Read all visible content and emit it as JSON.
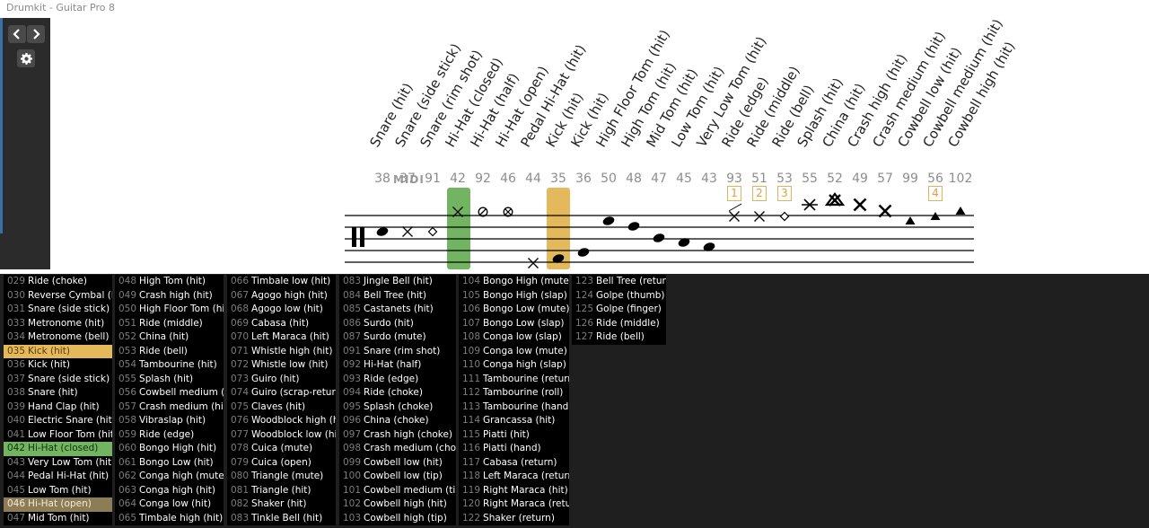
{
  "window": {
    "title": "Drumkit - Guitar Pro 8"
  },
  "toolbar": {
    "prev_icon": "chevron-left-icon",
    "next_icon": "chevron-right-icon",
    "settings_icon": "gear-icon"
  },
  "midi_logo": "MIDI",
  "colors": {
    "highlight_orange": "#e4b95c",
    "highlight_green": "#73b462",
    "highlight_tan": "#8c7d57",
    "badge": "#d9a23e"
  },
  "articulations": [
    {
      "label": "Snare (hit)",
      "midi": "38"
    },
    {
      "label": "Snare (side stick)",
      "midi": "37"
    },
    {
      "label": "Snare (rim shot)",
      "midi": "91"
    },
    {
      "label": "Hi-Hat (closed)",
      "midi": "42"
    },
    {
      "label": "Hi-Hat (half)",
      "midi": "92"
    },
    {
      "label": "Hi-Hat (open)",
      "midi": "46"
    },
    {
      "label": "Pedal Hi-Hat (hit)",
      "midi": "44"
    },
    {
      "label": "Kick (hit)",
      "midi": "35"
    },
    {
      "label": "Kick (hit)",
      "midi": "36"
    },
    {
      "label": "High Floor Tom (hit)",
      "midi": "50"
    },
    {
      "label": "High Tom (hit)",
      "midi": "48"
    },
    {
      "label": "Mid Tom (hit)",
      "midi": "47"
    },
    {
      "label": "Low Tom (hit)",
      "midi": "45"
    },
    {
      "label": "Very Low Tom (hit)",
      "midi": "43"
    },
    {
      "label": "Ride (edge)",
      "midi": "93",
      "badge": "1"
    },
    {
      "label": "Ride (middle)",
      "midi": "51",
      "badge": "2"
    },
    {
      "label": "Ride (bell)",
      "midi": "53",
      "badge": "3"
    },
    {
      "label": "Splash (hit)",
      "midi": "55"
    },
    {
      "label": "China (hit)",
      "midi": "52"
    },
    {
      "label": "Crash high (hit)",
      "midi": "49"
    },
    {
      "label": "Crash medium (hit)",
      "midi": "57"
    },
    {
      "label": "Cowbell low (hit)",
      "midi": "99"
    },
    {
      "label": "Cowbell medium (hit)",
      "midi": "56",
      "badge": "4"
    },
    {
      "label": "Cowbell high (hit)",
      "midi": "102"
    }
  ],
  "instrument_list": [
    [
      {
        "num": "029",
        "name": "Ride (choke)"
      },
      {
        "num": "030",
        "name": "Reverse Cymbal (hit)"
      },
      {
        "num": "031",
        "name": "Snare (side stick)"
      },
      {
        "num": "033",
        "name": "Metronome (hit)"
      },
      {
        "num": "034",
        "name": "Metronome (bell)"
      },
      {
        "num": "035",
        "name": "Kick (hit)",
        "hl": "orange"
      },
      {
        "num": "036",
        "name": "Kick (hit)"
      },
      {
        "num": "037",
        "name": "Snare (side stick)"
      },
      {
        "num": "038",
        "name": "Snare (hit)"
      },
      {
        "num": "039",
        "name": "Hand Clap (hit)"
      },
      {
        "num": "040",
        "name": "Electric Snare (hit)"
      },
      {
        "num": "041",
        "name": "Low Floor Tom (hit)"
      },
      {
        "num": "042",
        "name": "Hi-Hat (closed)",
        "hl": "green"
      },
      {
        "num": "043",
        "name": "Very Low Tom (hit)"
      },
      {
        "num": "044",
        "name": "Pedal Hi-Hat (hit)"
      },
      {
        "num": "045",
        "name": "Low Tom (hit)"
      },
      {
        "num": "046",
        "name": "Hi-Hat (open)",
        "hl": "tan"
      },
      {
        "num": "047",
        "name": "Mid Tom (hit)"
      }
    ],
    [
      {
        "num": "048",
        "name": "High Tom (hit)"
      },
      {
        "num": "049",
        "name": "Crash high (hit)"
      },
      {
        "num": "050",
        "name": "High Floor Tom (hit)"
      },
      {
        "num": "051",
        "name": "Ride (middle)"
      },
      {
        "num": "052",
        "name": "China (hit)"
      },
      {
        "num": "053",
        "name": "Ride (bell)"
      },
      {
        "num": "054",
        "name": "Tambourine (hit)"
      },
      {
        "num": "055",
        "name": "Splash (hit)"
      },
      {
        "num": "056",
        "name": "Cowbell medium (hit)"
      },
      {
        "num": "057",
        "name": "Crash medium (hit)"
      },
      {
        "num": "058",
        "name": "Vibraslap (hit)"
      },
      {
        "num": "059",
        "name": "Ride (edge)"
      },
      {
        "num": "060",
        "name": "Bongo High (hit)"
      },
      {
        "num": "061",
        "name": "Bongo Low (hit)"
      },
      {
        "num": "062",
        "name": "Conga high (mute)"
      },
      {
        "num": "063",
        "name": "Conga high (hit)"
      },
      {
        "num": "064",
        "name": "Conga low (hit)"
      },
      {
        "num": "065",
        "name": "Timbale high (hit)"
      }
    ],
    [
      {
        "num": "066",
        "name": "Timbale low (hit)"
      },
      {
        "num": "067",
        "name": "Agogo high (hit)"
      },
      {
        "num": "068",
        "name": "Agogo low (hit)"
      },
      {
        "num": "069",
        "name": "Cabasa (hit)"
      },
      {
        "num": "070",
        "name": "Left Maraca (hit)"
      },
      {
        "num": "071",
        "name": "Whistle high (hit)"
      },
      {
        "num": "072",
        "name": "Whistle low (hit)"
      },
      {
        "num": "073",
        "name": "Guiro (hit)"
      },
      {
        "num": "074",
        "name": "Guiro (scrap-return)"
      },
      {
        "num": "075",
        "name": "Claves (hit)"
      },
      {
        "num": "076",
        "name": "Woodblock high (hit)"
      },
      {
        "num": "077",
        "name": "Woodblock low (hit)"
      },
      {
        "num": "078",
        "name": "Cuica (mute)"
      },
      {
        "num": "079",
        "name": "Cuica (open)"
      },
      {
        "num": "080",
        "name": "Triangle (mute)"
      },
      {
        "num": "081",
        "name": "Triangle (hit)"
      },
      {
        "num": "082",
        "name": "Shaker (hit)"
      },
      {
        "num": "083",
        "name": "Tinkle Bell (hit)"
      }
    ],
    [
      {
        "num": "083",
        "name": "Jingle Bell (hit)"
      },
      {
        "num": "084",
        "name": "Bell Tree (hit)"
      },
      {
        "num": "085",
        "name": "Castanets (hit)"
      },
      {
        "num": "086",
        "name": "Surdo (hit)"
      },
      {
        "num": "087",
        "name": "Surdo (mute)"
      },
      {
        "num": "091",
        "name": "Snare (rim shot)"
      },
      {
        "num": "092",
        "name": "Hi-Hat (half)"
      },
      {
        "num": "093",
        "name": "Ride (edge)"
      },
      {
        "num": "094",
        "name": "Ride (choke)"
      },
      {
        "num": "095",
        "name": "Splash (choke)"
      },
      {
        "num": "096",
        "name": "China (choke)"
      },
      {
        "num": "097",
        "name": "Crash high (choke)"
      },
      {
        "num": "098",
        "name": "Crash medium (choke)"
      },
      {
        "num": "099",
        "name": "Cowbell low (hit)"
      },
      {
        "num": "100",
        "name": "Cowbell low (tip)"
      },
      {
        "num": "101",
        "name": "Cowbell medium (tip)"
      },
      {
        "num": "102",
        "name": "Cowbell high (hit)"
      },
      {
        "num": "103",
        "name": "Cowbell high (tip)"
      }
    ],
    [
      {
        "num": "104",
        "name": "Bongo High (mute)"
      },
      {
        "num": "105",
        "name": "Bongo High (slap)"
      },
      {
        "num": "106",
        "name": "Bongo Low (mute)"
      },
      {
        "num": "107",
        "name": "Bongo Low (slap)"
      },
      {
        "num": "108",
        "name": "Conga low (slap)"
      },
      {
        "num": "109",
        "name": "Conga low (mute)"
      },
      {
        "num": "110",
        "name": "Conga high (slap)"
      },
      {
        "num": "111",
        "name": "Tambourine (return)"
      },
      {
        "num": "112",
        "name": "Tambourine (roll)"
      },
      {
        "num": "113",
        "name": "Tambourine (hand)"
      },
      {
        "num": "114",
        "name": "Grancassa (hit)"
      },
      {
        "num": "115",
        "name": "Piatti (hit)"
      },
      {
        "num": "116",
        "name": "Piatti (hand)"
      },
      {
        "num": "117",
        "name": "Cabasa (return)"
      },
      {
        "num": "118",
        "name": "Left Maraca (return)"
      },
      {
        "num": "119",
        "name": "Right Maraca (hit)"
      },
      {
        "num": "120",
        "name": "Right Maraca (return)"
      },
      {
        "num": "122",
        "name": "Shaker (return)"
      }
    ],
    [
      {
        "num": "123",
        "name": "Bell Tree (return)"
      },
      {
        "num": "124",
        "name": "Golpe (thumb)"
      },
      {
        "num": "125",
        "name": "Golpe (finger)"
      },
      {
        "num": "126",
        "name": "Ride (middle)"
      },
      {
        "num": "127",
        "name": "Ride (bell)"
      }
    ]
  ]
}
